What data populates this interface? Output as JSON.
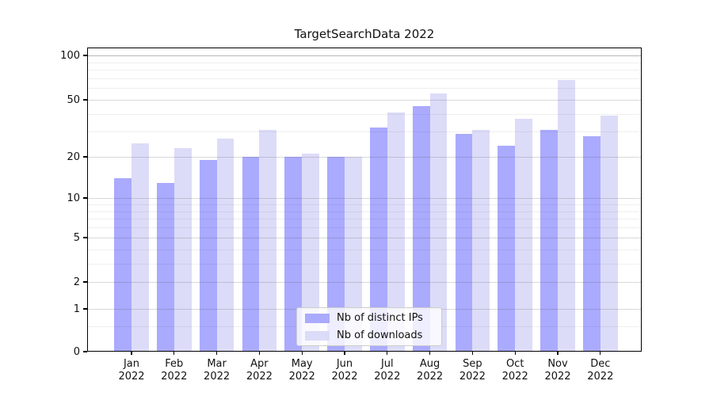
{
  "title": "TargetSearchData 2022",
  "chart_data": {
    "type": "bar",
    "title": "TargetSearchData 2022",
    "categories": [
      "Jan 2022",
      "Feb 2022",
      "Mar 2022",
      "Apr 2022",
      "May 2022",
      "Jun 2022",
      "Jul 2022",
      "Aug 2022",
      "Sep 2022",
      "Oct 2022",
      "Nov 2022",
      "Dec 2022"
    ],
    "category_line1": [
      "Jan",
      "Feb",
      "Mar",
      "Apr",
      "May",
      "Jun",
      "Jul",
      "Aug",
      "Sep",
      "Oct",
      "Nov",
      "Dec"
    ],
    "category_line2": "2022",
    "series": [
      {
        "name": "Nb of distinct IPs",
        "color": "#aaaaff",
        "values": [
          14,
          13,
          19,
          20,
          20,
          20,
          32,
          45,
          29,
          24,
          31,
          28
        ]
      },
      {
        "name": "Nb of downloads",
        "color": "#dcdcf8",
        "values": [
          25,
          23,
          27,
          31,
          21,
          20,
          41,
          55,
          31,
          37,
          68,
          39
        ]
      }
    ],
    "xlabel": "",
    "ylabel": "",
    "yscale": "symlog",
    "ylim": [
      0,
      115
    ],
    "y_major_ticks": [
      100,
      50,
      20,
      10,
      5,
      2,
      1,
      0
    ],
    "y_minor_gridlines": [
      0.5,
      3,
      4,
      6,
      7,
      8,
      9,
      30,
      40,
      60,
      70,
      80,
      90
    ],
    "grid": true,
    "legend_position": "lower center"
  },
  "legend": {
    "items": [
      {
        "label": "Nb of distinct IPs",
        "color": "#aaaaff"
      },
      {
        "label": "Nb of downloads",
        "color": "#dcdcf8"
      }
    ]
  },
  "colors": {
    "background": "#ffffff",
    "bar_dark": "#aaaaff",
    "bar_light": "#dcdcf8",
    "spine": "#000000",
    "text": "#111111",
    "grid_major": "#cfcfcf",
    "grid_minor": "#ededed",
    "legend_border": "#cccccc"
  }
}
